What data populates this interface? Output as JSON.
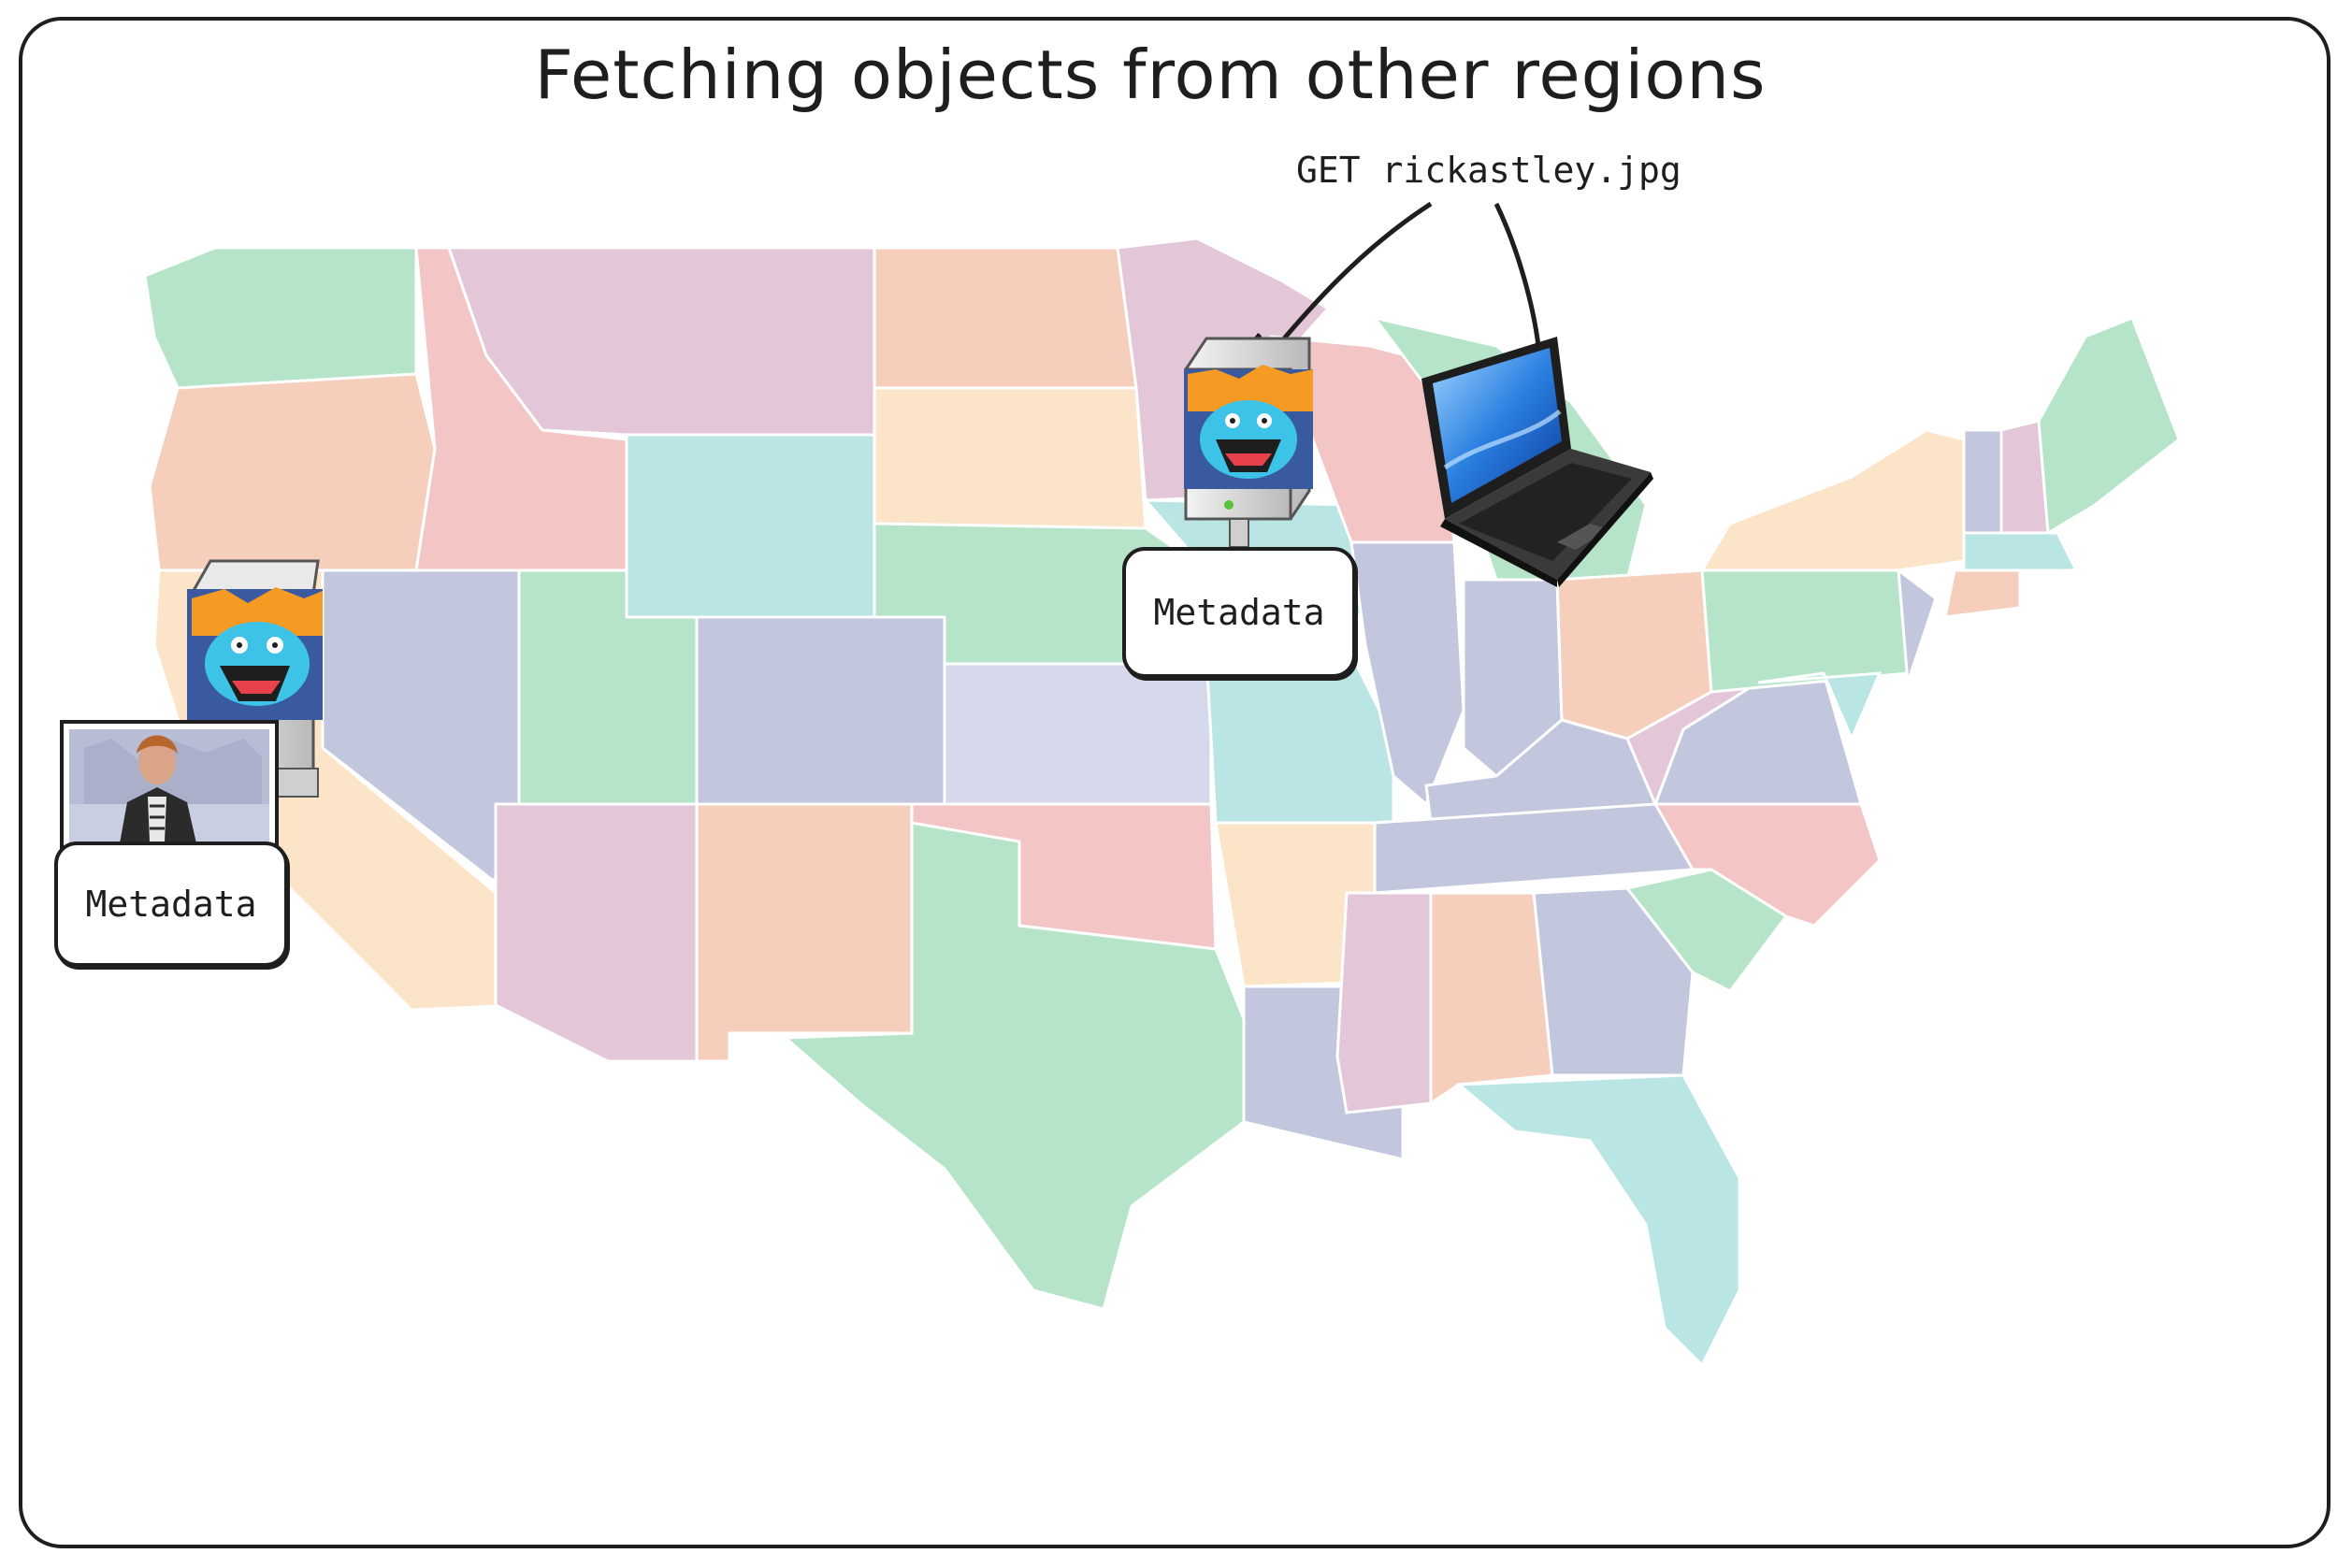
{
  "title": "Fetching objects from other regions",
  "request_label": "GET rickastley.jpg",
  "nodes": {
    "central": {
      "label": "Metadata"
    },
    "west": {
      "label": "Metadata"
    }
  },
  "icons": {
    "server_central": "server-tiger-icon",
    "server_west": "server-tiger-icon",
    "laptop": "laptop-icon",
    "photo": "rick-astley-photo"
  },
  "colors": {
    "ink": "#1e1e1e",
    "state_green": "#b2e3c6",
    "state_pink": "#e3c3d8",
    "state_orange": "#f6cdb9",
    "state_yellow": "#fbe3c6",
    "state_teal": "#b6e5e4",
    "state_slate": "#bfc5dd",
    "state_lavender": "#d3d8ea",
    "state_red": "#f4c2c2"
  }
}
